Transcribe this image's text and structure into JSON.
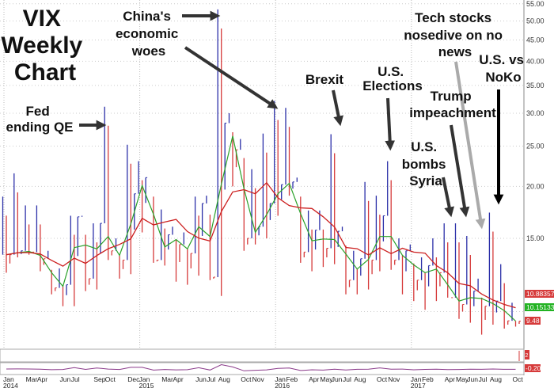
{
  "chart_data": {
    "type": "ohlc",
    "title": "VIX Weekly Chart",
    "title_lines": [
      "VIX",
      "Weekly",
      "Chart"
    ],
    "y_scale": "log",
    "ylim": [
      8,
      55
    ],
    "y_ticks": [
      "55.00",
      "50.00",
      "45.00",
      "40.00",
      "35.00",
      "30.00",
      "25.00",
      "20.00",
      "15.00"
    ],
    "y_tick_values": [
      55,
      50,
      45,
      40,
      35,
      30,
      25,
      20,
      15
    ],
    "grid": true,
    "x_tick_labels": [
      {
        "m": "Jan",
        "y": "2014",
        "i": 0
      },
      {
        "m": "Mar",
        "i": 2
      },
      {
        "m": "Apr",
        "i": 3
      },
      {
        "m": "Jun",
        "i": 5
      },
      {
        "m": "Jul",
        "i": 6
      },
      {
        "m": "Sep",
        "i": 8
      },
      {
        "m": "Oct",
        "i": 9
      },
      {
        "m": "Dec",
        "i": 11
      },
      {
        "m": "Jan",
        "y": "2015",
        "i": 12
      },
      {
        "m": "Mar",
        "i": 14
      },
      {
        "m": "Apr",
        "i": 15
      },
      {
        "m": "Jun",
        "i": 17
      },
      {
        "m": "Jul",
        "i": 18
      },
      {
        "m": "Aug",
        "i": 19
      },
      {
        "m": "Oct",
        "i": 21
      },
      {
        "m": "Nov",
        "i": 22
      },
      {
        "m": "Jan",
        "y": "2016",
        "i": 24
      },
      {
        "m": "Feb",
        "i": 25
      },
      {
        "m": "Apr",
        "i": 27
      },
      {
        "m": "May",
        "i": 28
      },
      {
        "m": "Jun",
        "i": 29
      },
      {
        "m": "Jul",
        "i": 30
      },
      {
        "m": "Aug",
        "i": 31
      },
      {
        "m": "Oct",
        "i": 33
      },
      {
        "m": "Nov",
        "i": 34
      },
      {
        "m": "Jan",
        "y": "2017",
        "i": 36
      },
      {
        "m": "Feb",
        "i": 37
      },
      {
        "m": "Apr",
        "i": 39
      },
      {
        "m": "May",
        "i": 40
      },
      {
        "m": "Jun",
        "i": 41
      },
      {
        "m": "Jul",
        "i": 42
      },
      {
        "m": "Aug",
        "i": 43
      },
      {
        "m": "Oct",
        "i": 45
      }
    ],
    "periods": [
      "2014-01",
      "2014-02",
      "2014-03",
      "2014-04",
      "2014-05",
      "2014-06",
      "2014-07",
      "2014-08",
      "2014-09",
      "2014-10",
      "2014-11",
      "2014-12",
      "2015-01",
      "2015-02",
      "2015-03",
      "2015-04",
      "2015-05",
      "2015-06",
      "2015-07",
      "2015-08",
      "2015-09",
      "2015-10",
      "2015-11",
      "2015-12",
      "2016-01",
      "2016-02",
      "2016-03",
      "2016-04",
      "2016-05",
      "2016-06",
      "2016-07",
      "2016-08",
      "2016-09",
      "2016-10",
      "2016-11",
      "2016-12",
      "2017-01",
      "2017-02",
      "2017-03",
      "2017-04",
      "2017-05",
      "2017-06",
      "2017-07",
      "2017-08",
      "2017-09",
      "2017-10"
    ],
    "high": [
      18.9,
      21.5,
      18.0,
      18.0,
      14.0,
      12.7,
      17.0,
      17.0,
      16.3,
      31.1,
      15.0,
      25.2,
      23.0,
      21.0,
      17.6,
      16.0,
      15.5,
      18.9,
      19.0,
      53.3,
      30.0,
      26.0,
      22.0,
      26.8,
      32.1,
      30.9,
      21.0,
      17.5,
      17.5,
      26.7,
      16.0,
      14.0,
      20.5,
      19.0,
      23.0,
      15.0,
      14.5,
      13.5,
      15.0,
      16.3,
      16.3,
      15.2,
      12.0,
      17.3,
      13.0,
      10.5
    ],
    "low": [
      12.4,
      13.5,
      13.7,
      12.5,
      11.0,
      10.3,
      10.3,
      11.2,
      11.3,
      13.3,
      12.0,
      12.3,
      15.5,
      13.1,
      12.9,
      11.8,
      11.6,
      12.2,
      11.9,
      10.9,
      20.0,
      14.0,
      14.5,
      15.0,
      17.0,
      19.0,
      13.1,
      12.5,
      12.8,
      13.0,
      11.0,
      11.0,
      11.3,
      12.5,
      12.6,
      11.0,
      10.6,
      10.1,
      10.6,
      10.8,
      9.6,
      9.4,
      8.8,
      9.3,
      9.1,
      9.2
    ],
    "close": [
      13.7,
      14.0,
      13.9,
      13.4,
      11.4,
      11.6,
      16.9,
      12.0,
      16.3,
      14.0,
      13.3,
      19.2,
      21.0,
      13.3,
      15.3,
      14.5,
      13.8,
      18.2,
      12.1,
      28.4,
      24.5,
      15.0,
      16.0,
      18.2,
      20.2,
      20.5,
      13.9,
      15.7,
      14.2,
      15.6,
      11.9,
      13.4,
      13.3,
      17.0,
      13.3,
      14.0,
      11.9,
      12.9,
      12.4,
      10.8,
      10.4,
      11.2,
      10.3,
      10.6,
      9.5,
      9.48
    ],
    "series_colors": {
      "up": "#2b2fa8",
      "down": "#d63a3a",
      "fast_ma": "#2aa12a",
      "slow_ma": "#cc1f1f"
    },
    "last_values": {
      "slow_ma": "10.883572",
      "fast_ma": "10.151334",
      "close": "9.48"
    },
    "indicator_last": "-0.20",
    "indicator_small": "2"
  },
  "annotations": {
    "china": [
      "China's",
      "economic",
      "woes"
    ],
    "fed": [
      "Fed",
      "ending QE"
    ],
    "brexit": [
      "Brexit"
    ],
    "elections": [
      "U.S.",
      "Elections"
    ],
    "tech": [
      "Tech stocks",
      "nosedive on no",
      "news"
    ],
    "noko": [
      "U.S. vs",
      "NoKo"
    ],
    "trump": [
      "Trump",
      "impeachment"
    ],
    "syria": [
      "U.S.",
      "bombs",
      "Syria"
    ]
  }
}
